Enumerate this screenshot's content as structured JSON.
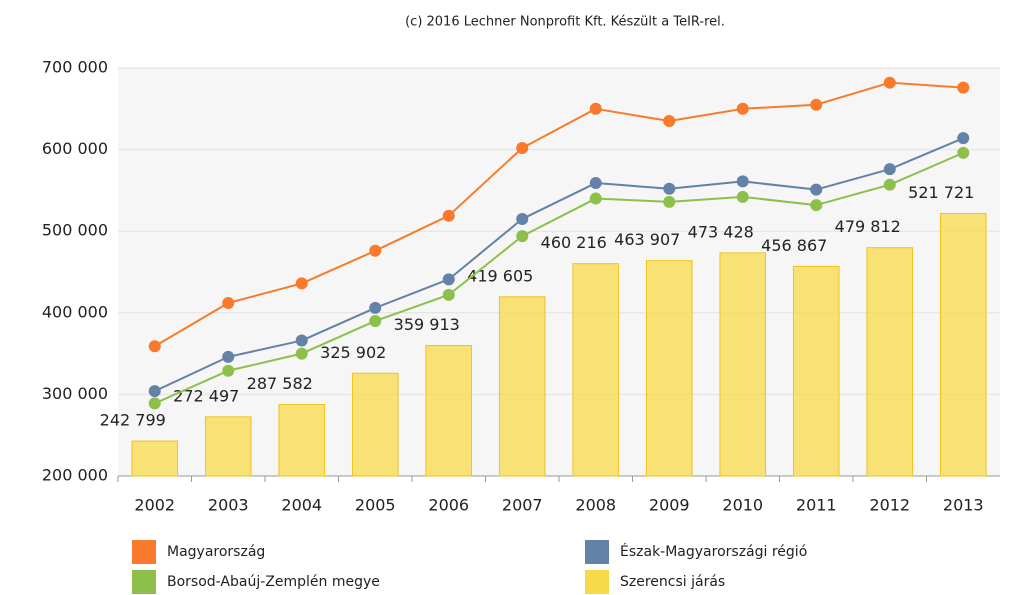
{
  "chart_data": {
    "type": "bar",
    "title": "(c) 2016 Lechner Nonprofit Kft. Készült a TeIR-rel.",
    "categories": [
      "2002",
      "2003",
      "2004",
      "2005",
      "2006",
      "2007",
      "2008",
      "2009",
      "2010",
      "2011",
      "2012",
      "2013"
    ],
    "series": [
      {
        "name": "Magyarország",
        "type": "line",
        "color": "#f97a2a",
        "values": [
          359000,
          412000,
          436000,
          476000,
          519000,
          602000,
          650000,
          635000,
          650000,
          655000,
          682000,
          676000
        ]
      },
      {
        "name": "Észak-Magyarországi régió",
        "type": "line",
        "color": "#6482a8",
        "values": [
          304000,
          346000,
          366000,
          406000,
          441000,
          515000,
          559000,
          552000,
          561000,
          551000,
          576000,
          614000
        ]
      },
      {
        "name": "Borsod-Abaúj-Zemplén megye",
        "type": "line",
        "color": "#8cc04a",
        "values": [
          289000,
          329000,
          350000,
          390000,
          422000,
          494000,
          540000,
          536000,
          542000,
          532000,
          557000,
          596000
        ]
      },
      {
        "name": "Szerencsi járás",
        "type": "bar",
        "color": "#f8d94a",
        "values": [
          242799,
          272497,
          287582,
          325902,
          359913,
          419605,
          460216,
          463907,
          473428,
          456867,
          479812,
          521721
        ],
        "value_labels": [
          "242 799",
          "272 497",
          "287 582",
          "325 902",
          "359 913",
          "419 605",
          "460 216",
          "463 907",
          "473 428",
          "456 867",
          "479 812",
          "521 721"
        ]
      }
    ],
    "ylim": [
      200000,
      700000
    ],
    "yticks": [
      {
        "value": 200000,
        "label": "200 000"
      },
      {
        "value": 300000,
        "label": "300 000"
      },
      {
        "value": 400000,
        "label": "400 000"
      },
      {
        "value": 500000,
        "label": "500 000"
      },
      {
        "value": 600000,
        "label": "600 000"
      },
      {
        "value": 700000,
        "label": "700 000"
      }
    ],
    "grid": true
  }
}
